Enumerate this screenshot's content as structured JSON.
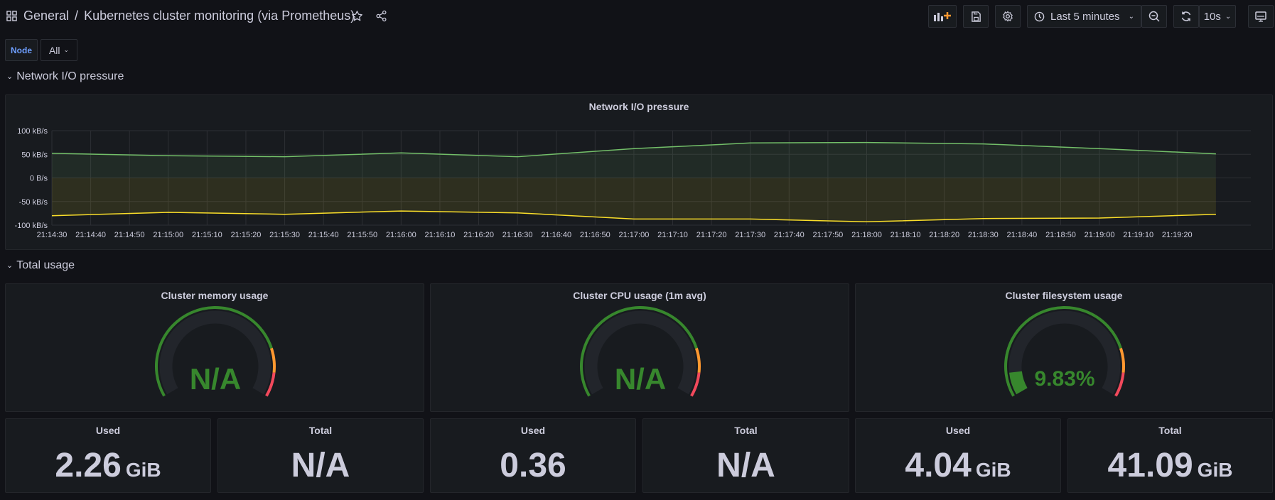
{
  "header": {
    "folder": "General",
    "separator": "/",
    "dashboard_title": "Kubernetes cluster monitoring (via Prometheus)",
    "time_range": "Last 5 minutes",
    "refresh_interval": "10s",
    "icons": [
      "apps-icon",
      "star-icon",
      "share-icon",
      "add-panel-icon",
      "save-icon",
      "settings-icon",
      "clock-icon",
      "zoom-out-icon",
      "refresh-icon",
      "tv-mode-icon"
    ]
  },
  "variables": {
    "node_label": "Node",
    "node_value": "All"
  },
  "rows": {
    "network": "Network I/O pressure",
    "total_usage": "Total usage"
  },
  "network_panel": {
    "title": "Network I/O pressure",
    "chart_data": {
      "type": "area",
      "title": "Network I/O pressure",
      "y_unit": "B/s",
      "ylim": [
        -100000,
        100000
      ],
      "y_ticks": [
        "100 kB/s",
        "50 kB/s",
        "0 B/s",
        "-50 kB/s",
        "-100 kB/s"
      ],
      "x_ticks": [
        "21:14:30",
        "21:14:40",
        "21:14:50",
        "21:15:00",
        "21:15:10",
        "21:15:20",
        "21:15:30",
        "21:15:40",
        "21:15:50",
        "21:16:00",
        "21:16:10",
        "21:16:20",
        "21:16:30",
        "21:16:40",
        "21:16:50",
        "21:17:00",
        "21:17:10",
        "21:17:20",
        "21:17:30",
        "21:17:40",
        "21:17:50",
        "21:18:00",
        "21:18:10",
        "21:18:20",
        "21:18:30",
        "21:18:40",
        "21:18:50",
        "21:19:00",
        "21:19:10",
        "21:19:20"
      ],
      "x": [
        "21:14:30",
        "21:15:00",
        "21:15:30",
        "21:16:00",
        "21:16:30",
        "21:17:00",
        "21:17:30",
        "21:18:00",
        "21:18:30",
        "21:19:00",
        "21:19:30"
      ],
      "series": [
        {
          "color": "#73bf69",
          "values": [
            52000,
            47000,
            45000,
            53000,
            45000,
            62000,
            74000,
            75000,
            72000,
            62000,
            51000
          ]
        },
        {
          "color": "#fade2a",
          "values": [
            -80000,
            -73000,
            -77000,
            -70000,
            -74000,
            -87000,
            -87000,
            -93000,
            -86000,
            -85000,
            -77000
          ]
        }
      ],
      "grid": true,
      "legend": "none"
    }
  },
  "gauges": [
    {
      "title": "Cluster memory usage",
      "value_text": "N/A",
      "percent": null,
      "color": "#37872d"
    },
    {
      "title": "Cluster CPU usage (1m avg)",
      "value_text": "N/A",
      "percent": null,
      "color": "#37872d"
    },
    {
      "title": "Cluster filesystem usage",
      "value_text": "9.83%",
      "percent": 9.83,
      "color": "#37872d"
    }
  ],
  "stats": [
    {
      "title": "Used",
      "value": "2.26",
      "unit": "GiB"
    },
    {
      "title": "Total",
      "value": "N/A",
      "unit": ""
    },
    {
      "title": "Used",
      "value": "0.36",
      "unit": ""
    },
    {
      "title": "Total",
      "value": "N/A",
      "unit": ""
    },
    {
      "title": "Used",
      "value": "4.04",
      "unit": "GiB"
    },
    {
      "title": "Total",
      "value": "41.09",
      "unit": "GiB"
    }
  ],
  "colors": {
    "background": "#111217",
    "panel": "#181b1f",
    "green": "#73bf69",
    "yellow": "#fade2a",
    "gauge_green": "#37872d",
    "gauge_orange": "#ff9830",
    "gauge_red": "#f2495c"
  }
}
